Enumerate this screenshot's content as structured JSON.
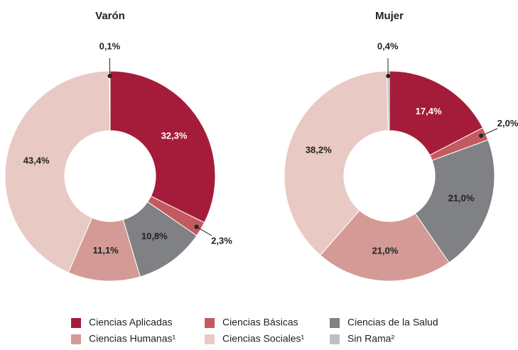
{
  "legend": {
    "categories": [
      "Ciencias Aplicadas",
      "Ciencias Básicas",
      "Ciencias de la Salud",
      "Ciencias Humanas¹",
      "Ciencias Sociales¹",
      "Sin Rama²"
    ],
    "colors": [
      "#a51c3a",
      "#c45a5f",
      "#808184",
      "#d49a95",
      "#e9c9c3",
      "#c0c0c4"
    ]
  },
  "chart_data": [
    {
      "type": "pie",
      "donut": true,
      "title": "Varón",
      "values": [
        32.3,
        2.3,
        10.8,
        11.1,
        43.4,
        0.1
      ],
      "value_labels": [
        "32,3%",
        "2,3%",
        "10,8%",
        "11,1%",
        "43,4%",
        "0,1%"
      ]
    },
    {
      "type": "pie",
      "donut": true,
      "title": "Mujer",
      "values": [
        17.4,
        2.0,
        21.0,
        21.0,
        38.2,
        0.4
      ],
      "value_labels": [
        "17,4%",
        "2,0%",
        "21,0%",
        "21,0%",
        "38,2%",
        "0,4%"
      ]
    }
  ]
}
